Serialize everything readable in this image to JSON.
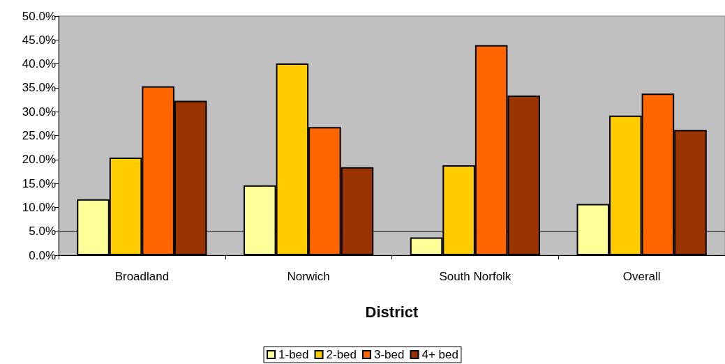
{
  "chart_data": {
    "type": "bar",
    "xlabel": "District",
    "categories": [
      "Broadland",
      "Norwich",
      "South Norfolk",
      "Overall"
    ],
    "series": [
      {
        "name": "1-bed",
        "color": "#ffff99",
        "values": [
          11.7,
          14.6,
          3.7,
          10.7
        ]
      },
      {
        "name": "2-bed",
        "color": "#ffcc00",
        "values": [
          20.4,
          40.1,
          18.8,
          29.2
        ]
      },
      {
        "name": "3-bed",
        "color": "#ff6600",
        "values": [
          35.3,
          26.8,
          43.9,
          33.8
        ]
      },
      {
        "name": "4+ bed",
        "color": "#993300",
        "values": [
          32.3,
          18.4,
          33.4,
          26.2
        ]
      }
    ],
    "ylim": [
      0,
      50
    ],
    "yticks": [
      {
        "value": 0,
        "label": "0.0%"
      },
      {
        "value": 5,
        "label": "5.0%"
      },
      {
        "value": 10,
        "label": "10.0%"
      },
      {
        "value": 15,
        "label": "15.0%"
      },
      {
        "value": 20,
        "label": "20.0%"
      },
      {
        "value": 25,
        "label": "25.0%"
      },
      {
        "value": 30,
        "label": "30.0%"
      },
      {
        "value": 35,
        "label": "35.0%"
      },
      {
        "value": 40,
        "label": "40.0%"
      },
      {
        "value": 45,
        "label": "45.0%"
      },
      {
        "value": 50,
        "label": "50.0%"
      }
    ],
    "ref_lines": [
      {
        "axis": "y",
        "value": 5,
        "color": "#000000"
      }
    ],
    "grid": false,
    "legend": "bottom"
  }
}
